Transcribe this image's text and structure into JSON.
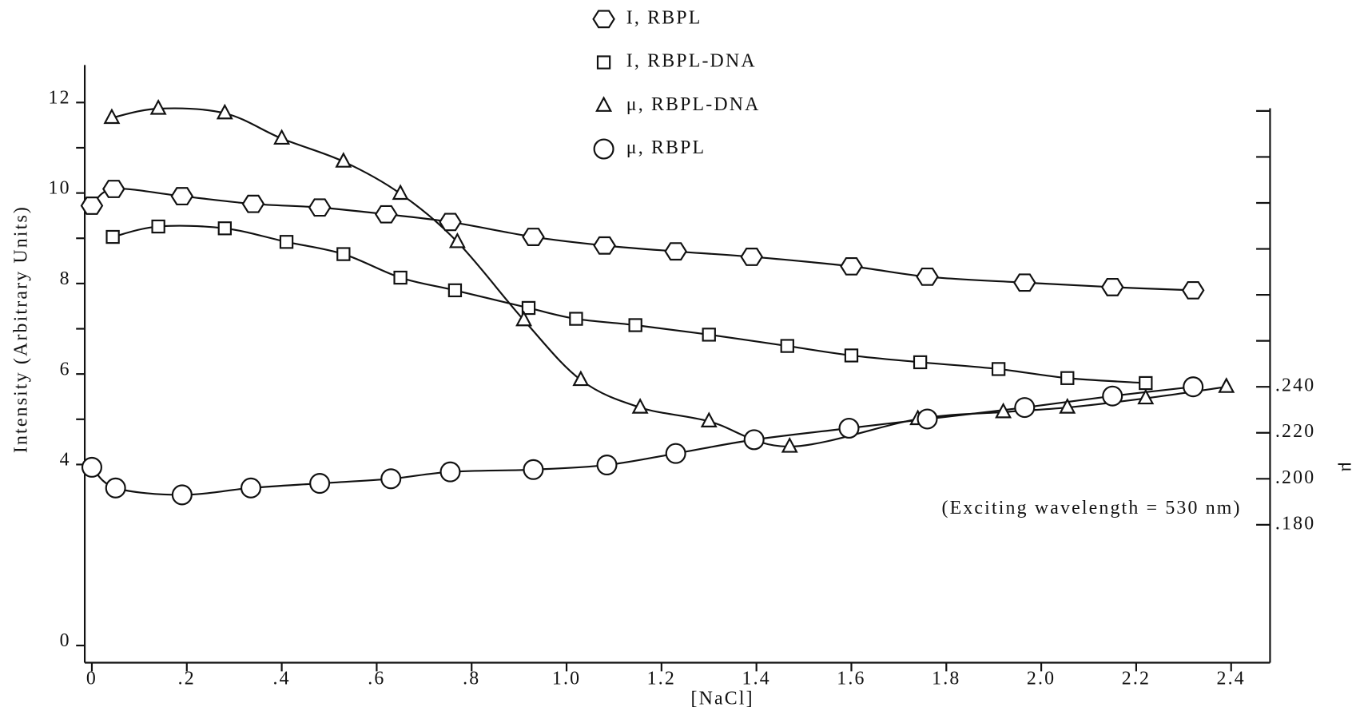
{
  "chart_data": {
    "type": "line",
    "xlabel": "[NaCl]",
    "ylabel": "Intensity (Arbitrary Units)",
    "y2label": "μ",
    "annotation": "(Exciting wavelength = 530 nm)",
    "xlim": [
      -0.015,
      2.482
    ],
    "xticks": [
      0,
      {
        "value": 0.2,
        "label": ".2"
      },
      {
        "value": 0.4,
        "label": ".4"
      },
      {
        "value": 0.6,
        "label": ".6"
      },
      {
        "value": 0.8,
        "label": ".8"
      },
      {
        "value": 1.0,
        "label": "1.0"
      },
      1.2,
      1.4,
      1.6,
      1.8,
      {
        "value": 2.0,
        "label": "2.0"
      },
      2.2,
      2.4
    ],
    "ylim": [
      -0.38,
      12.83
    ],
    "yticks": [
      0,
      4,
      6,
      8,
      10,
      12
    ],
    "yminor_ticks": [
      5,
      7,
      9,
      11
    ],
    "y2lim": [
      0.12,
      0.38
    ],
    "y2ticks": [
      {
        "value": 0.18,
        "label": ".180"
      },
      {
        "value": 0.2,
        "label": ".200"
      },
      {
        "value": 0.22,
        "label": ".220"
      },
      {
        "value": 0.24,
        "label": ".240"
      }
    ],
    "y2minor_ticks": [
      0.26,
      0.28,
      0.3,
      0.32,
      0.34,
      0.36
    ],
    "series": [
      {
        "name": "I, RBPL",
        "marker": "hexagon",
        "color": "#111111",
        "x": [
          0,
          0.046,
          0.19,
          0.34,
          0.48,
          0.62,
          0.755,
          0.93,
          1.08,
          1.23,
          1.39,
          1.6,
          1.76,
          1.965,
          2.15,
          2.32
        ],
        "values": [
          9.72,
          10.09,
          9.93,
          9.76,
          9.68,
          9.53,
          9.36,
          9.03,
          8.84,
          8.71,
          8.59,
          8.38,
          8.15,
          8.02,
          7.92,
          7.85
        ]
      },
      {
        "name": "I, RBPL-DNA",
        "marker": "square",
        "color": "#111111",
        "x": [
          0.044,
          0.14,
          0.28,
          0.41,
          0.53,
          0.65,
          0.765,
          0.92,
          1.02,
          1.145,
          1.3,
          1.465,
          1.6,
          1.745,
          1.91,
          2.055,
          2.22
        ],
        "values": [
          9.03,
          9.26,
          9.22,
          8.92,
          8.65,
          8.13,
          7.85,
          7.46,
          7.22,
          7.08,
          6.87,
          6.62,
          6.41,
          6.26,
          6.11,
          5.91,
          5.8
        ]
      },
      {
        "name": "μ, RBPL-DNA",
        "marker": "triangle",
        "color": "#111111",
        "axis": "y2",
        "x": [
          0.042,
          0.14,
          0.28,
          0.4,
          0.53,
          0.65,
          0.77,
          0.91,
          1.03,
          1.155,
          1.3,
          1.47,
          1.74,
          1.92,
          2.055,
          2.22,
          2.39
        ],
        "values": [
          0.357,
          0.361,
          0.359,
          0.348,
          0.338,
          0.324,
          0.303,
          0.269,
          0.243,
          0.231,
          0.225,
          0.214,
          0.226,
          0.229,
          0.231,
          0.235,
          0.24
        ]
      },
      {
        "name": "μ, RBPL",
        "marker": "circle",
        "color": "#111111",
        "axis": "y2",
        "x": [
          0,
          0.05,
          0.19,
          0.335,
          0.48,
          0.63,
          0.755,
          0.93,
          1.085,
          1.23,
          1.395,
          1.595,
          1.76,
          1.965,
          2.15,
          2.32
        ],
        "values": [
          0.205,
          0.196,
          0.193,
          0.196,
          0.198,
          0.2,
          0.203,
          0.204,
          0.206,
          0.211,
          0.217,
          0.222,
          0.226,
          0.231,
          0.236,
          0.24
        ]
      }
    ]
  }
}
